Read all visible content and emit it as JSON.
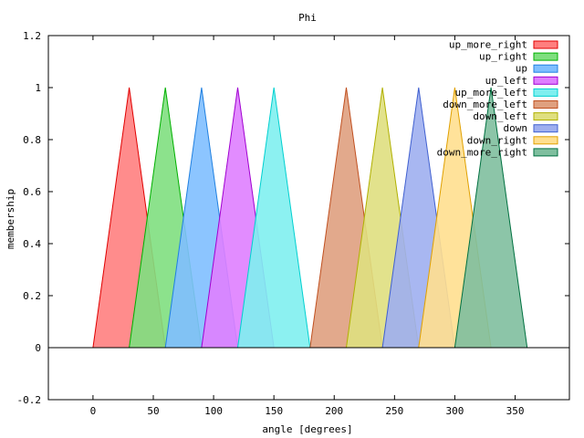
{
  "chart_data": {
    "type": "area",
    "title": "Phi",
    "xlabel": "angle [degrees]",
    "ylabel": "membership",
    "xlim": [
      -37,
      395
    ],
    "ylim": [
      -0.2,
      1.2
    ],
    "x_ticks": [
      0,
      50,
      100,
      150,
      200,
      250,
      300,
      350
    ],
    "y_ticks": [
      -0.2,
      0,
      0.2,
      0.4,
      0.6,
      0.8,
      1,
      1.2
    ],
    "x_tick_labels": [
      "0",
      "50",
      "100",
      "150",
      "200",
      "250",
      "300",
      "350"
    ],
    "y_tick_labels": [
      "-0.2",
      "0",
      "0.2",
      "0.4",
      "0.6",
      "0.8",
      "1",
      "1.2"
    ],
    "legend_position": "top-right",
    "grid": false,
    "series": [
      {
        "name": "up_more_right",
        "x": [
          0,
          30,
          60
        ],
        "y": [
          0,
          1,
          0
        ],
        "fill": "#ff7f7f",
        "stroke": "#e00000"
      },
      {
        "name": "up_right",
        "x": [
          30,
          60,
          90
        ],
        "y": [
          0,
          1,
          0
        ],
        "fill": "#7fdf7f",
        "stroke": "#00b000"
      },
      {
        "name": "up",
        "x": [
          60,
          90,
          120
        ],
        "y": [
          0,
          1,
          0
        ],
        "fill": "#7fbfff",
        "stroke": "#2080e0"
      },
      {
        "name": "up_left",
        "x": [
          90,
          120,
          150
        ],
        "y": [
          0,
          1,
          0
        ],
        "fill": "#df7fff",
        "stroke": "#a000d0"
      },
      {
        "name": "up_more_left",
        "x": [
          120,
          150,
          180
        ],
        "y": [
          0,
          1,
          0
        ],
        "fill": "#7fefef",
        "stroke": "#00d0d0"
      },
      {
        "name": "down_more_left",
        "x": [
          180,
          210,
          240
        ],
        "y": [
          0,
          1,
          0
        ],
        "fill": "#dfa07f",
        "stroke": "#c05020"
      },
      {
        "name": "down_left",
        "x": [
          210,
          240,
          270
        ],
        "y": [
          0,
          1,
          0
        ],
        "fill": "#dfdf7f",
        "stroke": "#b0b000"
      },
      {
        "name": "down",
        "x": [
          240,
          270,
          300
        ],
        "y": [
          0,
          1,
          0
        ],
        "fill": "#9fafef",
        "stroke": "#4060d0"
      },
      {
        "name": "down_right",
        "x": [
          270,
          300,
          330
        ],
        "y": [
          0,
          1,
          0
        ],
        "fill": "#ffdf8f",
        "stroke": "#e0a000"
      },
      {
        "name": "down_more_right",
        "x": [
          300,
          330,
          360
        ],
        "y": [
          0,
          1,
          0
        ],
        "fill": "#7fbf9f",
        "stroke": "#007040"
      }
    ]
  }
}
